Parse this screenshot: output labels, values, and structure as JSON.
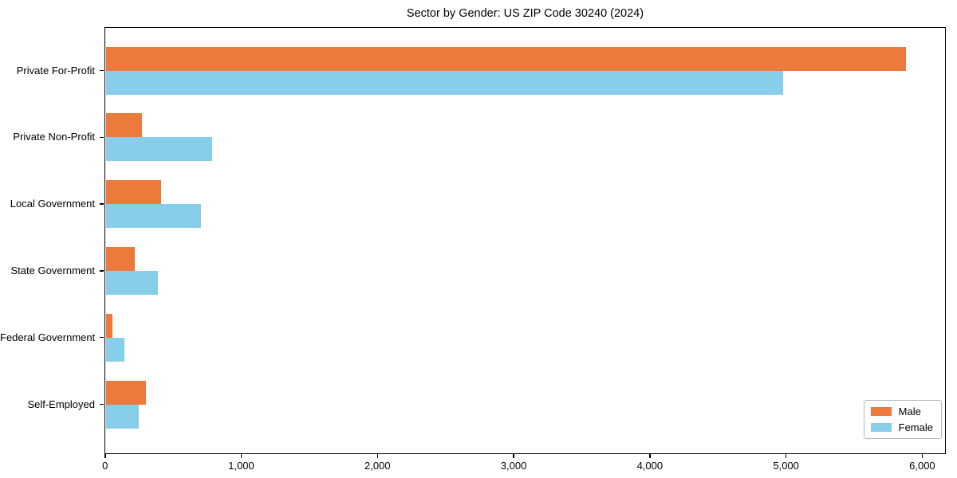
{
  "title": "Sector by Gender: US ZIP Code 30240 (2024)",
  "chart_data": {
    "type": "bar",
    "orientation": "horizontal",
    "title": "Sector by Gender: US ZIP Code 30240 (2024)",
    "xlabel": "",
    "ylabel": "",
    "categories": [
      "Private For-Profit",
      "Private Non-Profit",
      "Local Government",
      "State Government",
      "Federal Government",
      "Self-Employed"
    ],
    "series": [
      {
        "name": "Male",
        "color": "#EB7A3C",
        "values": [
          5875,
          265,
          405,
          215,
          50,
          295
        ]
      },
      {
        "name": "Female",
        "color": "#87CEEB",
        "values": [
          4975,
          780,
          700,
          385,
          135,
          245
        ]
      }
    ],
    "x_tick_labels": [
      "0",
      "1,000",
      "2,000",
      "3,000",
      "4,000",
      "5,000",
      "6,000"
    ],
    "x_tick_values": [
      0,
      1000,
      2000,
      3000,
      4000,
      5000,
      6000
    ],
    "xlim": [
      0,
      6166
    ],
    "grid": false,
    "legend_position": "lower right"
  }
}
